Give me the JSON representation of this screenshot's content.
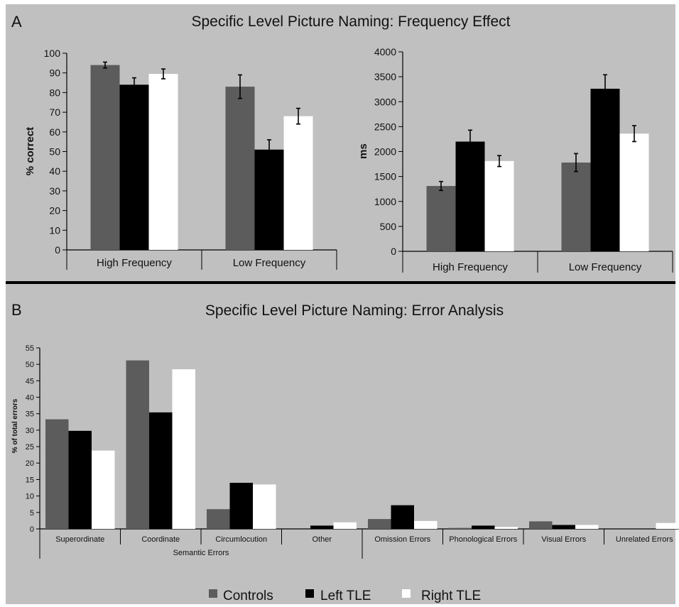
{
  "colors": {
    "background": "#c0c0c0",
    "controls": "#5c5c5c",
    "left_tle": "#000000",
    "right_tle": "#ffffff",
    "axis": "#000000"
  },
  "panel_a": {
    "letter": "A",
    "title": "Specific Level Picture Naming: Frequency Effect"
  },
  "panel_b": {
    "letter": "B",
    "title": "Specific Level Picture Naming: Error Analysis"
  },
  "legend": [
    "Controls",
    "Left TLE",
    "Right TLE"
  ],
  "chart_data": [
    {
      "type": "bar",
      "title": "",
      "xlabel": "",
      "ylabel": "% correct",
      "ylim": [
        0,
        100
      ],
      "yticks": [
        0,
        10,
        20,
        30,
        40,
        50,
        60,
        70,
        80,
        90,
        100
      ],
      "categories": [
        "High Frequency",
        "Low Frequency"
      ],
      "series": [
        {
          "name": "Controls",
          "values": [
            94,
            83
          ],
          "errors": [
            1.5,
            6
          ]
        },
        {
          "name": "Left TLE",
          "values": [
            84,
            51
          ],
          "errors": [
            3.5,
            5
          ]
        },
        {
          "name": "Right TLE",
          "values": [
            89.5,
            68
          ],
          "errors": [
            2.5,
            4
          ]
        }
      ],
      "grid": false,
      "legend": "bottom"
    },
    {
      "type": "bar",
      "title": "",
      "xlabel": "",
      "ylabel": "ms",
      "ylim": [
        0,
        4000
      ],
      "yticks": [
        0,
        500,
        1000,
        1500,
        2000,
        2500,
        3000,
        3500,
        4000
      ],
      "categories": [
        "High Frequency",
        "Low Frequency"
      ],
      "series": [
        {
          "name": "Controls",
          "values": [
            1310,
            1780
          ],
          "errors": [
            90,
            180
          ]
        },
        {
          "name": "Left TLE",
          "values": [
            2200,
            3260
          ],
          "errors": [
            230,
            280
          ]
        },
        {
          "name": "Right TLE",
          "values": [
            1810,
            2360
          ],
          "errors": [
            110,
            160
          ]
        }
      ],
      "grid": false,
      "legend": "bottom"
    },
    {
      "type": "bar",
      "title": "",
      "xlabel": "",
      "ylabel": "% of total errors",
      "ylim": [
        0,
        55
      ],
      "yticks": [
        0,
        5,
        10,
        15,
        20,
        25,
        30,
        35,
        40,
        45,
        50,
        55
      ],
      "categories": [
        "Superordinate",
        "Coordinate",
        "Circumlocution",
        "Other",
        "Omission Errors",
        "Phonological Errors",
        "Visual Errors",
        "Unrelated Errors"
      ],
      "category_groups": [
        {
          "label": "Semantic Errors",
          "members": [
            "Superordinate",
            "Coordinate",
            "Circumlocution",
            "Other"
          ]
        }
      ],
      "series": [
        {
          "name": "Controls",
          "values": [
            33.3,
            51.2,
            6,
            0,
            3,
            0.3,
            2.3,
            0
          ]
        },
        {
          "name": "Left TLE",
          "values": [
            29.8,
            35.4,
            14,
            1,
            7.2,
            1,
            1.2,
            0
          ]
        },
        {
          "name": "Right TLE",
          "values": [
            23.8,
            48.5,
            13.5,
            2,
            2.4,
            0.6,
            1.2,
            1.8
          ]
        }
      ],
      "grid": false,
      "legend": "bottom"
    }
  ]
}
